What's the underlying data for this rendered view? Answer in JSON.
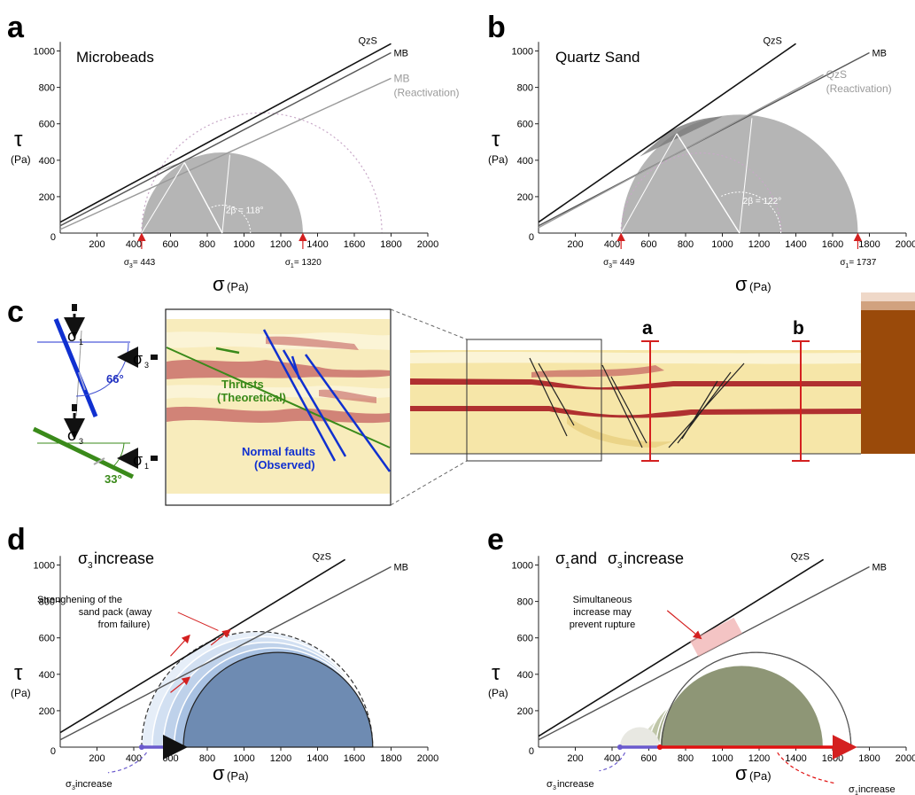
{
  "panel_letters": {
    "a": "a",
    "b": "b",
    "c": "c",
    "d": "d",
    "e": "e"
  },
  "axis_symbols": {
    "tau": "τ",
    "tau_unit": "(Pa)",
    "sigma": "σ",
    "sigma_unit": "(Pa)"
  },
  "colors": {
    "mb_envelope": "#555555",
    "qzs_envelope": "#111111",
    "reactivation": "#9a9a9a",
    "circle_grey": "#b5b5b5",
    "circle_dark": "#7a7a7a",
    "d_circle": "#6e8bb2",
    "e_circle": "#727a62",
    "sigma3_arrow": "#6a5acd",
    "sigma1_arrow": "#e01010",
    "normal_fault": "#1030d0",
    "thrust": "#3a8a1a",
    "section_line": "#d42020",
    "sand": "#f6e6a8",
    "layer": "#b03030",
    "backstop": "#9a4a0a"
  },
  "panel_c": {
    "sigma1": "σ",
    "sigma1_sub": "1",
    "sigma3": "σ",
    "sigma3_sub": "3",
    "angle_normal": "66°",
    "angle_thrust": "33°",
    "thrusts_label_1": "Thrusts",
    "thrusts_label_2": "(Theoretical)",
    "normal_label_1": "Normal faults",
    "normal_label_2": "(Observed)",
    "section_a": "a",
    "section_b": "b"
  },
  "chart_data": [
    {
      "panel": "a",
      "type": "line",
      "title": "Microbeads",
      "xlabel": "σ (Pa)",
      "ylabel": "τ (Pa)",
      "xlim": [
        0,
        2000
      ],
      "ylim": [
        0,
        1000
      ],
      "xticks": [
        200,
        400,
        600,
        800,
        1000,
        1200,
        1400,
        1600,
        1800,
        2000
      ],
      "yticks": [
        200,
        400,
        600,
        800,
        1000
      ],
      "series": [
        {
          "name": "QzS",
          "x": [
            0,
            1800
          ],
          "y": [
            60,
            1040
          ]
        },
        {
          "name": "MB",
          "x": [
            0,
            1800
          ],
          "y": [
            40,
            990
          ]
        },
        {
          "name": "MB (Reactivation)",
          "x": [
            0,
            1800
          ],
          "y": [
            20,
            850
          ]
        }
      ],
      "mohr_circles": [
        {
          "sigma3": 443,
          "sigma1": 1320,
          "style": "filled"
        },
        {
          "sigma3": 443,
          "sigma1": 1750,
          "style": "dotted"
        }
      ],
      "annotations": [
        {
          "text": "2β = 118°",
          "x": 1000,
          "y": 100
        },
        {
          "text": "σ₃= 443",
          "x": 443
        },
        {
          "text": "σ₁= 1320",
          "x": 1320
        }
      ],
      "labels": {
        "sigma3_name": "σ",
        "sigma3_sub": "3",
        "sigma3_val": "= 443",
        "sigma1_name": "σ",
        "sigma1_sub": "1",
        "sigma1_val": "= 1320",
        "beta": "2β = 118°"
      }
    },
    {
      "panel": "b",
      "type": "line",
      "title": "Quartz Sand",
      "xlabel": "σ (Pa)",
      "ylabel": "τ (Pa)",
      "xlim": [
        0,
        2000
      ],
      "ylim": [
        0,
        1000
      ],
      "xticks": [
        200,
        400,
        600,
        800,
        1000,
        1200,
        1400,
        1600,
        1800,
        2000
      ],
      "yticks": [
        200,
        400,
        600,
        800,
        1000
      ],
      "series": [
        {
          "name": "QzS",
          "x": [
            0,
            1400
          ],
          "y": [
            60,
            1040
          ]
        },
        {
          "name": "MB",
          "x": [
            0,
            1800
          ],
          "y": [
            40,
            990
          ]
        },
        {
          "name": "QzS (Reactivation)",
          "x": [
            0,
            1550
          ],
          "y": [
            30,
            870
          ]
        }
      ],
      "mohr_circles": [
        {
          "sigma3": 449,
          "sigma1": 1737,
          "style": "filled"
        },
        {
          "sigma3": 449,
          "sigma1": 1320,
          "style": "dotted"
        }
      ],
      "annotations": [
        {
          "text": "2β = 122°",
          "x": 1050,
          "y": 160
        },
        {
          "text": "σ₃= 449",
          "x": 449
        },
        {
          "text": "σ₁= 1737",
          "x": 1737
        }
      ],
      "labels": {
        "sigma3_name": "σ",
        "sigma3_sub": "3",
        "sigma3_val": "= 449",
        "sigma1_name": "σ",
        "sigma1_sub": "1",
        "sigma1_val": "= 1737",
        "beta": "2β = 122°"
      }
    },
    {
      "panel": "d",
      "type": "line",
      "title": "σ₃ increase",
      "xlabel": "σ (Pa)",
      "ylabel": "τ (Pa)",
      "xlim": [
        0,
        2000
      ],
      "ylim": [
        0,
        1000
      ],
      "xticks": [
        200,
        400,
        600,
        800,
        1000,
        1200,
        1400,
        1600,
        1800,
        2000
      ],
      "yticks": [
        200,
        400,
        600,
        800,
        1000
      ],
      "series": [
        {
          "name": "QzS",
          "x": [
            0,
            1550
          ],
          "y": [
            80,
            1030
          ]
        },
        {
          "name": "MB",
          "x": [
            0,
            1800
          ],
          "y": [
            40,
            990
          ]
        }
      ],
      "mohr_circles": [
        {
          "sigma3": 443,
          "sigma1": 1700,
          "style": "dashed"
        },
        {
          "sigma3": 670,
          "sigma1": 1700,
          "style": "filled"
        }
      ],
      "annotations": [
        {
          "text": "Strenghening of the sand pack (away from failure)"
        },
        {
          "text": "σ₃ increase"
        }
      ],
      "labels": {
        "title_name": "σ",
        "title_sub": "3",
        "title_rest": " increase",
        "note_1": "Strenghening of the",
        "note_2": "sand pack (away",
        "note_3": "from failure)",
        "arrow_name": "σ",
        "arrow_sub": "3",
        "arrow_rest": " increase"
      }
    },
    {
      "panel": "e",
      "type": "line",
      "title": "σ₁ and σ₃ increase",
      "xlabel": "σ (Pa)",
      "ylabel": "τ (Pa)",
      "xlim": [
        0,
        2000
      ],
      "ylim": [
        0,
        1000
      ],
      "xticks": [
        200,
        400,
        600,
        800,
        1000,
        1200,
        1400,
        1600,
        1800,
        2000
      ],
      "yticks": [
        200,
        400,
        600,
        800,
        1000
      ],
      "series": [
        {
          "name": "QzS",
          "x": [
            0,
            1550
          ],
          "y": [
            60,
            1030
          ]
        },
        {
          "name": "MB",
          "x": [
            0,
            1800
          ],
          "y": [
            40,
            990
          ]
        }
      ],
      "mohr_circles": [
        {
          "sigma3": 443,
          "sigma1": 660,
          "style": "filled"
        },
        {
          "sigma3": 670,
          "sigma1": 1700,
          "style": "filled"
        }
      ],
      "annotations": [
        {
          "text": "Simultaneous increase may prevent rupture"
        },
        {
          "text": "σ₃ increase"
        },
        {
          "text": "σ₁ increase"
        }
      ],
      "labels": {
        "title_a": "σ",
        "title_a_sub": "1",
        "title_mid": " and ",
        "title_b": "σ",
        "title_b_sub": "3",
        "title_rest": " increase",
        "note_1": "Simultaneous",
        "note_2": "increase may",
        "note_3": "prevent rupture",
        "s3_name": "σ",
        "s3_sub": "3",
        "s3_rest": "increase",
        "s1_name": "σ",
        "s1_sub": "1",
        "s1_rest": " increase"
      }
    }
  ]
}
